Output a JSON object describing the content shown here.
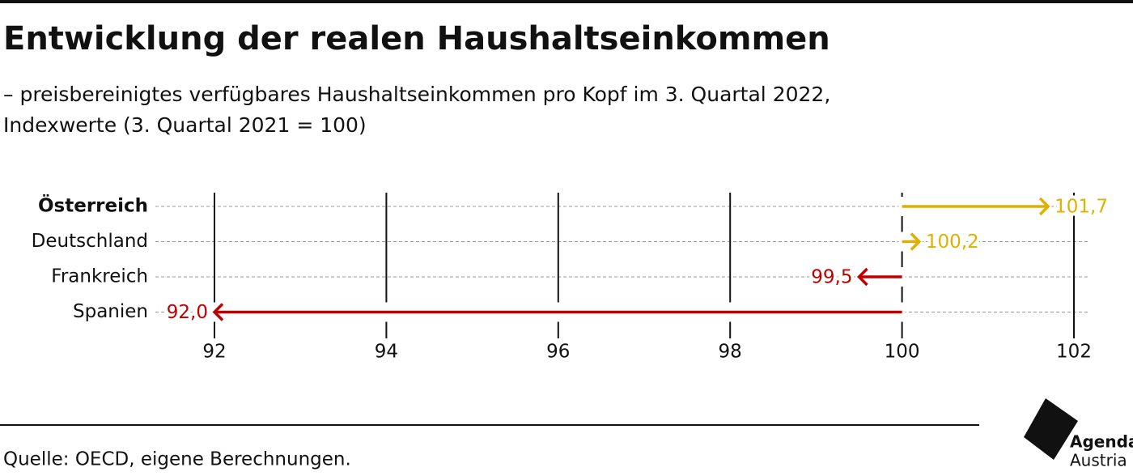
{
  "chart_data": {
    "type": "arrow",
    "title": "Entwicklung der realen Haushaltseinkommen",
    "subtitle": [
      "– preisbereinigtes verfügbares Haushaltseinkommen pro Kopf im 3. Quartal 2022,",
      "Indexwerte (3. Quartal 2021 = 100)"
    ],
    "categories": [
      "Österreich",
      "Deutschland",
      "Frankreich",
      "Spanien"
    ],
    "values": [
      101.7,
      100.2,
      99.5,
      92.0
    ],
    "value_labels": [
      "101,7",
      "100,2",
      "99,5",
      "92,0"
    ],
    "colors": [
      "#e0b000",
      "#e0b000",
      "#c00000",
      "#c00000"
    ],
    "base": 100,
    "highlight": 0,
    "xlim": [
      92,
      102
    ],
    "xticks": [
      92,
      94,
      96,
      98,
      100,
      102
    ],
    "grid": true,
    "source": "Quelle: OECD, eigene Berechnungen."
  },
  "logo": {
    "line1": "Agenda",
    "line2": "Austria"
  }
}
